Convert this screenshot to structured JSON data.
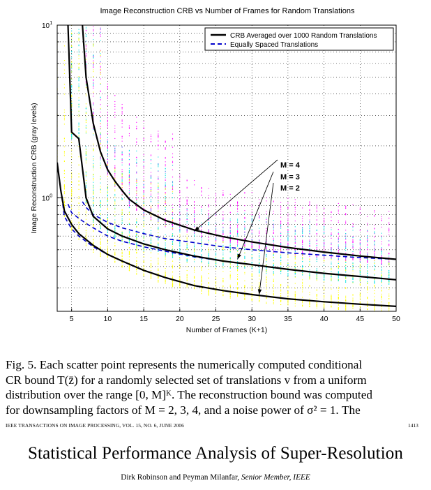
{
  "chart_data": {
    "type": "scatter",
    "title": "Image Reconstruction CRB vs Number of Frames for Random Translations",
    "xlabel": "Number of Frames (K+1)",
    "ylabel": "Image Reconstruction CRB (gray levels)",
    "xlim": [
      3,
      50
    ],
    "ylim": [
      0.22,
      10
    ],
    "yscale": "log",
    "x_ticks": [
      5,
      10,
      15,
      20,
      25,
      30,
      35,
      40,
      45,
      50
    ],
    "x_tick_labels": [
      "5",
      "10",
      "15",
      "20",
      "25",
      "30",
      "35",
      "40",
      "45",
      "50"
    ],
    "y_ticks": [
      1,
      10
    ],
    "y_tick_base": "10",
    "y_tick_exponents": [
      "0",
      "1"
    ],
    "grid": true,
    "legend": {
      "position": "top-right",
      "entries": [
        {
          "label": "CRB Averaged over 1000 Random Translations",
          "style": "solid",
          "color": "#000000"
        },
        {
          "label": "Equally Spaced Translations",
          "style": "dashed",
          "color": "#0000cc"
        }
      ]
    },
    "annotations": [
      "M = 4",
      "M = 3",
      "M = 2"
    ],
    "series": [
      {
        "name": "M = 4",
        "color": "#ff00ff",
        "avg": {
          "x": [
            6.5,
            7,
            8,
            9,
            10,
            11,
            12,
            13,
            15,
            18,
            22,
            26,
            30,
            35,
            40,
            45,
            50
          ],
          "y": [
            10,
            5.0,
            2.7,
            1.85,
            1.45,
            1.25,
            1.1,
            0.98,
            0.85,
            0.74,
            0.65,
            0.595,
            0.555,
            0.515,
            0.485,
            0.46,
            0.44
          ]
        },
        "equal": {
          "x": [
            6.5,
            7,
            8,
            10,
            12,
            15,
            18,
            22,
            26,
            30,
            35,
            40,
            45,
            50
          ],
          "y": [
            0.95,
            0.88,
            0.8,
            0.72,
            0.67,
            0.62,
            0.58,
            0.55,
            0.52,
            0.5,
            0.48,
            0.465,
            0.45,
            0.44
          ]
        }
      },
      {
        "name": "M = 3",
        "color": "#00e0e0",
        "avg": {
          "x": [
            4.5,
            5,
            6,
            7,
            8,
            10,
            12,
            15,
            18,
            22,
            26,
            30,
            35,
            40,
            45,
            50
          ],
          "y": [
            10,
            2.4,
            2.2,
            1.0,
            0.78,
            0.66,
            0.6,
            0.54,
            0.5,
            0.46,
            0.43,
            0.41,
            0.385,
            0.365,
            0.35,
            0.335
          ]
        },
        "equal": {
          "x": [
            4.5,
            5,
            6,
            7,
            8,
            10,
            12,
            15,
            18,
            22,
            26,
            30,
            35,
            40,
            45,
            50
          ],
          "y": [
            0.92,
            0.82,
            0.76,
            0.71,
            0.67,
            0.6,
            0.56,
            0.52,
            0.49,
            0.455,
            0.43,
            0.41,
            0.385,
            0.365,
            0.35,
            0.335
          ]
        }
      },
      {
        "name": "M = 2",
        "color": "#ffff00",
        "avg": {
          "x": [
            3,
            3.5,
            4,
            5,
            6,
            8,
            10,
            12,
            15,
            18,
            22,
            26,
            30,
            35,
            40,
            45,
            50
          ],
          "y": [
            1.6,
            1.1,
            0.84,
            0.7,
            0.62,
            0.53,
            0.47,
            0.43,
            0.38,
            0.345,
            0.31,
            0.29,
            0.275,
            0.26,
            0.25,
            0.242,
            0.235
          ]
        },
        "equal": {
          "x": [
            3,
            4,
            5,
            6,
            8,
            10,
            12,
            15,
            18,
            22,
            26,
            30,
            35,
            40,
            45,
            50
          ],
          "y": [
            1.6,
            0.78,
            0.66,
            0.6,
            0.52,
            0.47,
            0.43,
            0.38,
            0.345,
            0.31,
            0.29,
            0.275,
            0.26,
            0.25,
            0.242,
            0.235
          ]
        }
      }
    ]
  },
  "caption": {
    "line1": "Fig. 5.   Each scatter point represents the numerically computed conditional",
    "line2": "CR bound T(z̄) for a randomly selected set of translations v from a uniform",
    "line3": "distribution over the range [0, M]ᴷ. The reconstruction bound was computed",
    "line4": "for downsampling factors of M = 2, 3, 4, and a noise power of σ² = 1. The"
  },
  "header": {
    "journal": "IEEE TRANSACTIONS ON IMAGE PROCESSING, VOL. 15, NO. 6, JUNE 2006",
    "page_number": "1413"
  },
  "paper": {
    "title": "Statistical Performance Analysis of Super-Resolution",
    "authors": "Dirk Robinson and Peyman Milanfar,",
    "author_suffix": "Senior Member, IEEE"
  }
}
